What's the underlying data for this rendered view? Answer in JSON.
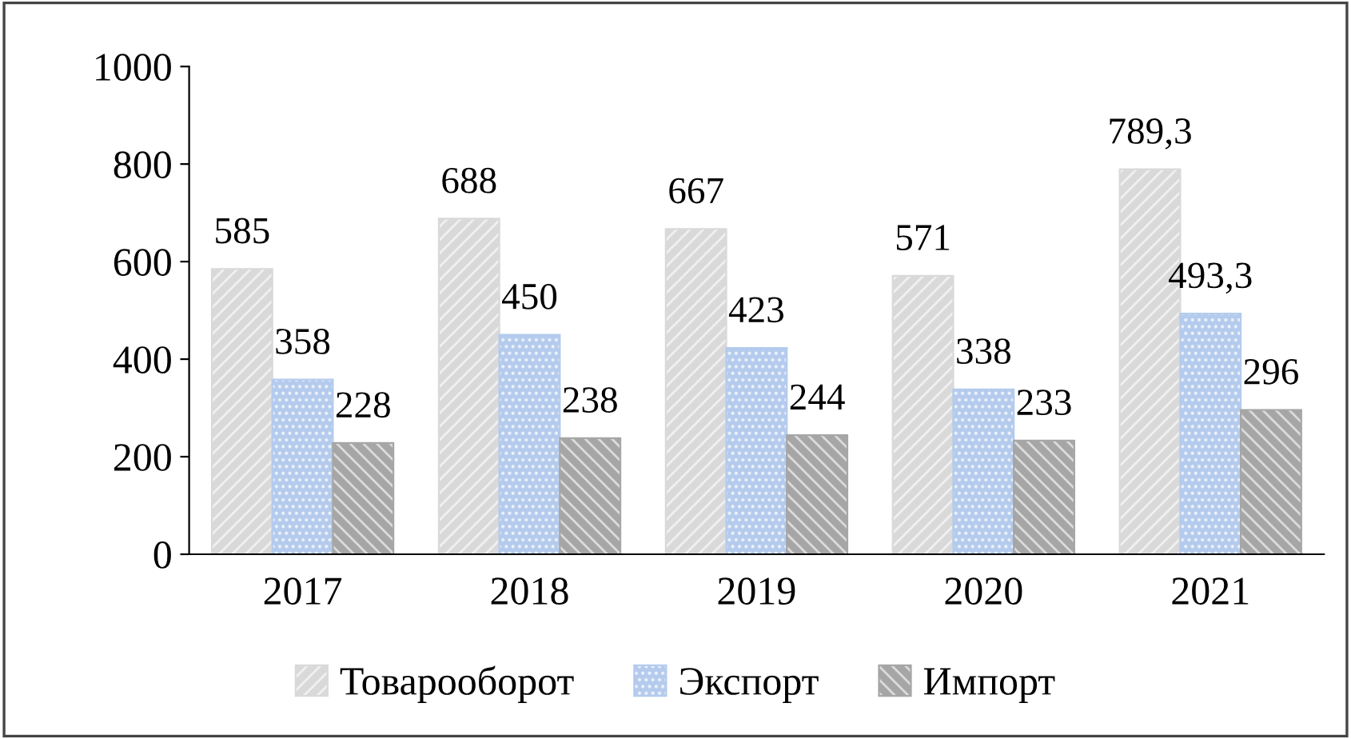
{
  "chart_data": {
    "type": "bar",
    "categories": [
      "2017",
      "2018",
      "2019",
      "2020",
      "2021"
    ],
    "series": [
      {
        "name": "Товарооборот",
        "color": "#d9d9d9",
        "values": [
          585,
          688,
          667,
          571,
          789.3
        ],
        "value_labels": [
          "585",
          "688",
          "667",
          "571",
          "789,3"
        ]
      },
      {
        "name": "Экспорт",
        "color": "#b4cbed",
        "values": [
          358,
          450,
          423,
          338,
          493.3
        ],
        "value_labels": [
          "358",
          "450",
          "423",
          "338",
          "493,3"
        ]
      },
      {
        "name": "Импорт",
        "color": "#a6a6a6",
        "values": [
          228,
          238,
          244,
          233,
          296
        ],
        "value_labels": [
          "228",
          "238",
          "244",
          "233",
          "296"
        ]
      }
    ],
    "ylim": [
      0,
      1000
    ],
    "yticks": [
      0,
      200,
      400,
      600,
      800,
      1000
    ],
    "grid": false,
    "legend": "bottom"
  }
}
